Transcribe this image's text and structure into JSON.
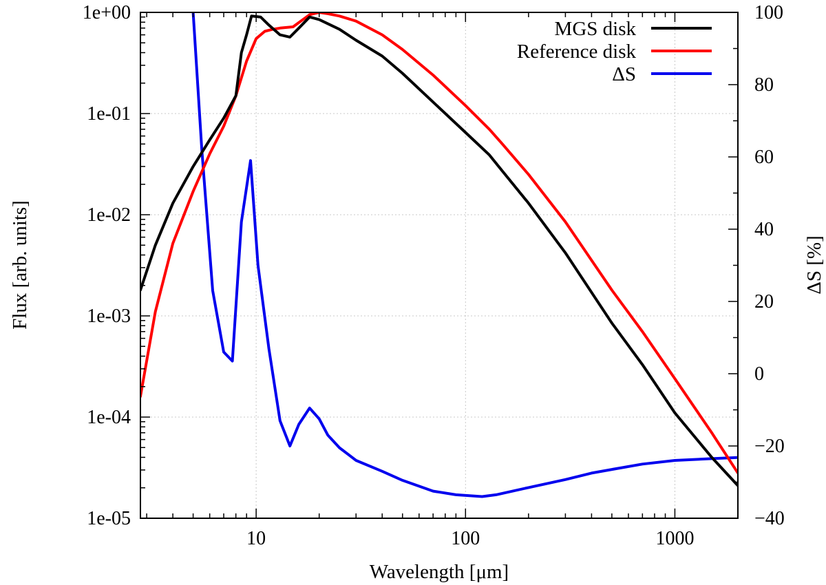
{
  "chart_data": {
    "type": "line",
    "title": "",
    "xlabel": "Wavelength [μm]",
    "ylabel": "Flux [arb. units]",
    "y2label": "ΔS [%]",
    "xscale": "log",
    "yscale": "log",
    "xlim": [
      2.8,
      2000
    ],
    "ylim": [
      1e-05,
      1
    ],
    "y2lim": [
      -40,
      100
    ],
    "xticks": [
      {
        "value": 10,
        "label": "10"
      },
      {
        "value": 100,
        "label": "100"
      },
      {
        "value": 1000,
        "label": "1000"
      }
    ],
    "yticks": [
      {
        "value": 1,
        "label": "1e+00"
      },
      {
        "value": 0.1,
        "label": "1e-01"
      },
      {
        "value": 0.01,
        "label": "1e-02"
      },
      {
        "value": 0.001,
        "label": "1e-03"
      },
      {
        "value": 0.0001,
        "label": "1e-04"
      },
      {
        "value": 1e-05,
        "label": "1e-05"
      }
    ],
    "y2ticks": [
      {
        "value": 100,
        "label": "100"
      },
      {
        "value": 80,
        "label": "80"
      },
      {
        "value": 60,
        "label": "60"
      },
      {
        "value": 40,
        "label": "40"
      },
      {
        "value": 20,
        "label": "20"
      },
      {
        "value": 0,
        "label": "0"
      },
      {
        "value": -20,
        "label": "−20"
      },
      {
        "value": -40,
        "label": "−40"
      }
    ],
    "grid": true,
    "legend_position": "top-right",
    "series": [
      {
        "name": "MGS disk",
        "color": "#000000",
        "axis": "y",
        "x": [
          2.8,
          3.3,
          4.0,
          5.0,
          6.0,
          7.0,
          8.0,
          8.5,
          9.0,
          9.5,
          10.5,
          11.5,
          13.0,
          14.5,
          16.0,
          18.0,
          20.0,
          25.0,
          30.0,
          40.0,
          50.0,
          70.0,
          100.0,
          130.0,
          150.0,
          200.0,
          300.0,
          500.0,
          700.0,
          1000.0,
          1500.0,
          2000.0
        ],
        "y": [
          0.0018,
          0.005,
          0.013,
          0.03,
          0.055,
          0.09,
          0.15,
          0.4,
          0.6,
          0.92,
          0.9,
          0.75,
          0.6,
          0.57,
          0.7,
          0.9,
          0.85,
          0.68,
          0.53,
          0.37,
          0.25,
          0.13,
          0.065,
          0.039,
          0.027,
          0.013,
          0.0042,
          0.00085,
          0.00033,
          0.00011,
          4e-05,
          2.1e-05
        ]
      },
      {
        "name": "Reference disk",
        "color": "#ff0000",
        "axis": "y",
        "x": [
          2.8,
          3.3,
          4.0,
          5.0,
          6.0,
          7.0,
          8.0,
          9.0,
          10.0,
          11.0,
          12.0,
          13.0,
          15.0,
          18.0,
          20.0,
          22.0,
          25.0,
          30.0,
          40.0,
          50.0,
          70.0,
          100.0,
          130.0,
          150.0,
          200.0,
          300.0,
          500.0,
          700.0,
          1000.0,
          1500.0,
          2000.0
        ],
        "y": [
          0.00016,
          0.0011,
          0.0052,
          0.017,
          0.04,
          0.075,
          0.15,
          0.33,
          0.55,
          0.65,
          0.68,
          0.7,
          0.72,
          0.95,
          1.0,
          0.97,
          0.92,
          0.82,
          0.6,
          0.43,
          0.24,
          0.12,
          0.07,
          0.05,
          0.025,
          0.0085,
          0.0018,
          0.0007,
          0.00024,
          7e-05,
          2.8e-05
        ]
      },
      {
        "name": "ΔS",
        "color": "#0000ee",
        "axis": "y2",
        "x": [
          5.0,
          5.5,
          6.2,
          7.0,
          7.7,
          8.5,
          9.4,
          10.2,
          11.5,
          13.0,
          14.5,
          16.0,
          18.0,
          20.0,
          22.0,
          25.0,
          30.0,
          40.0,
          50.0,
          70.0,
          90.0,
          120.0,
          140.0,
          200.0,
          300.0,
          400.0,
          500.0,
          700.0,
          1000.0,
          1500.0,
          2000.0
        ],
        "y": [
          100,
          62,
          23,
          6,
          3.5,
          42,
          59,
          30,
          7,
          -13,
          -20,
          -14,
          -9.5,
          -12.5,
          -17,
          -20.5,
          -24,
          -27,
          -29.5,
          -32.5,
          -33.5,
          -34,
          -33.5,
          -31.5,
          -29.3,
          -27.5,
          -26.5,
          -25,
          -24,
          -23.5,
          -23.2
        ]
      }
    ]
  }
}
